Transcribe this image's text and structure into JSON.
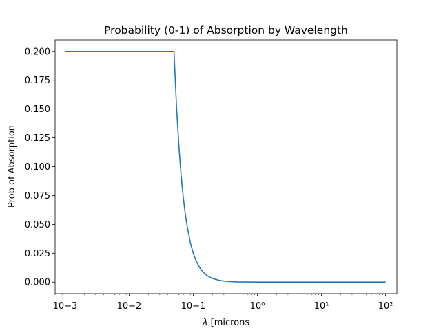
{
  "chart_data": {
    "type": "line",
    "title": "Probability (0-1) of Absorption by Wavelength",
    "xlabel": "λ [microns",
    "ylabel": "Prob of Absorption",
    "x_scale": "log",
    "xlim": [
      0.0007,
      150
    ],
    "ylim": [
      -0.01,
      0.21
    ],
    "grid": false,
    "x_ticks": [
      0.001,
      0.01,
      0.1,
      1,
      10,
      100
    ],
    "x_tick_labels": [
      "10−3",
      "10−2",
      "10−1",
      "10⁰",
      "10¹",
      "10²"
    ],
    "y_ticks": [
      0.0,
      0.025,
      0.05,
      0.075,
      0.1,
      0.125,
      0.15,
      0.175,
      0.2
    ],
    "y_tick_labels": [
      "0.000",
      "0.025",
      "0.050",
      "0.075",
      "0.100",
      "0.125",
      "0.150",
      "0.175",
      "0.200"
    ],
    "series": [
      {
        "color": "#1f77b4",
        "x": [
          0.001,
          0.0025,
          0.005,
          0.01,
          0.02,
          0.03,
          0.04,
          0.05,
          0.05,
          0.055,
          0.06,
          0.065,
          0.07,
          0.075,
          0.08,
          0.09,
          0.1,
          0.11,
          0.125,
          0.14,
          0.16,
          0.18,
          0.2,
          0.25,
          0.3,
          0.4,
          0.5,
          0.7,
          1,
          2,
          5,
          10,
          30,
          100
        ],
        "y": [
          0.2,
          0.2,
          0.2,
          0.2,
          0.2,
          0.2,
          0.2,
          0.2,
          0.2,
          0.15,
          0.116,
          0.091,
          0.073,
          0.059,
          0.049,
          0.034,
          0.025,
          0.0188,
          0.0128,
          0.0091,
          0.0061,
          0.0043,
          0.0031,
          0.0016,
          0.0009,
          0.0004,
          0.0002,
          0.0001,
          3e-05,
          0.0,
          0.0,
          0.0,
          0.0,
          0.0
        ]
      }
    ]
  }
}
